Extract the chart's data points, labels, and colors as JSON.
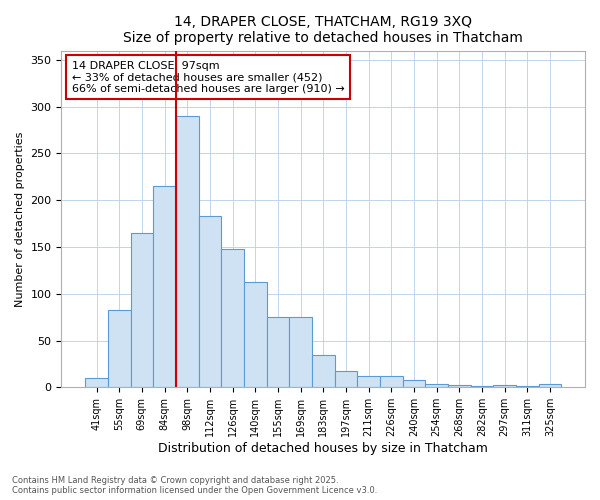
{
  "title": "14, DRAPER CLOSE, THATCHAM, RG19 3XQ",
  "subtitle": "Size of property relative to detached houses in Thatcham",
  "xlabel": "Distribution of detached houses by size in Thatcham",
  "ylabel": "Number of detached properties",
  "categories": [
    "41sqm",
    "55sqm",
    "69sqm",
    "84sqm",
    "98sqm",
    "112sqm",
    "126sqm",
    "140sqm",
    "155sqm",
    "169sqm",
    "183sqm",
    "197sqm",
    "211sqm",
    "226sqm",
    "240sqm",
    "254sqm",
    "268sqm",
    "282sqm",
    "297sqm",
    "311sqm",
    "325sqm"
  ],
  "values": [
    10,
    83,
    165,
    215,
    290,
    183,
    148,
    113,
    75,
    75,
    35,
    17,
    12,
    12,
    8,
    4,
    2,
    1,
    2,
    1,
    4
  ],
  "bar_color": "#cfe2f3",
  "bar_edge_color": "#5b9bd5",
  "red_line_x": 3.5,
  "red_line_color": "#cc0000",
  "annotation_title": "14 DRAPER CLOSE: 97sqm",
  "annotation_line1": "← 33% of detached houses are smaller (452)",
  "annotation_line2": "66% of semi-detached houses are larger (910) →",
  "annotation_box_edge": "#cc0000",
  "ylim": [
    0,
    360
  ],
  "yticks": [
    0,
    50,
    100,
    150,
    200,
    250,
    300,
    350
  ],
  "footnote1": "Contains HM Land Registry data © Crown copyright and database right 2025.",
  "footnote2": "Contains public sector information licensed under the Open Government Licence v3.0.",
  "bg_color": "#ffffff"
}
